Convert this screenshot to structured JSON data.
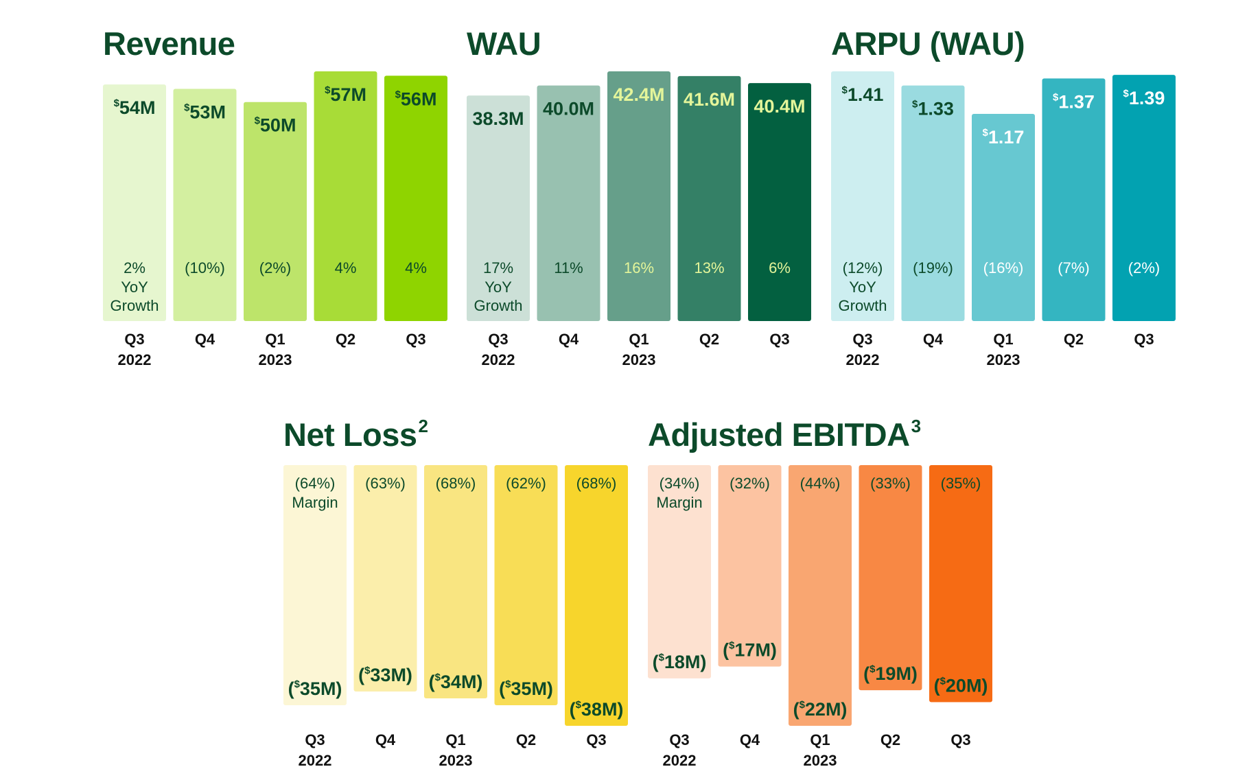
{
  "categories": [
    "Q3",
    "Q4",
    "Q1",
    "Q2",
    "Q3"
  ],
  "years": [
    "2022",
    "",
    "2023",
    "",
    ""
  ],
  "colors": {
    "title": "#0c4a2a",
    "tick": "#111111"
  },
  "panels": {
    "revenue": {
      "title": "Revenue",
      "note": "",
      "colors": [
        "#e6f6cf",
        "#d3efa0",
        "#bde46a",
        "#a8dc37",
        "#8fd400"
      ],
      "text_colors": [
        "#0c4a2a",
        "#0c4a2a",
        "#0c4a2a",
        "#0c4a2a",
        "#0c4a2a"
      ],
      "pct_colors": [
        "#0c4a2a",
        "#0c4a2a",
        "#0c4a2a",
        "#0c4a2a",
        "#0c4a2a"
      ],
      "value_labels": [
        "54M",
        "53M",
        "50M",
        "57M",
        "56M"
      ],
      "currency_prefix": "$",
      "pct_labels": [
        "2%",
        "(10%)",
        "(2%)",
        "4%",
        "4%"
      ],
      "first_suffix": [
        "YoY",
        "Growth"
      ]
    },
    "wau": {
      "title": "WAU",
      "note": "",
      "colors": [
        "#cce0d7",
        "#98c1b0",
        "#669f8a",
        "#348066",
        "#036040"
      ],
      "text_colors": [
        "#0c4a2a",
        "#0c4a2a",
        "#e4f59a",
        "#e4f59a",
        "#e4f59a"
      ],
      "pct_colors": [
        "#0c4a2a",
        "#0c4a2a",
        "#e4f59a",
        "#e4f59a",
        "#e4f59a"
      ],
      "value_labels": [
        "38.3M",
        "40.0M",
        "42.4M",
        "41.6M",
        "40.4M"
      ],
      "currency_prefix": "",
      "pct_labels": [
        "17%",
        "11%",
        "16%",
        "13%",
        "6%"
      ],
      "first_suffix": [
        "YoY",
        "Growth"
      ]
    },
    "arpu": {
      "title": "ARPU (WAU)",
      "note": "",
      "colors": [
        "#cdeef0",
        "#9adbe0",
        "#67c8d1",
        "#34b5c1",
        "#02a2b1"
      ],
      "text_colors": [
        "#0c4a2a",
        "#0c4a2a",
        "#ffffff",
        "#ffffff",
        "#ffffff"
      ],
      "pct_colors": [
        "#0c4a2a",
        "#0c4a2a",
        "#ffffff",
        "#ffffff",
        "#ffffff"
      ],
      "value_labels": [
        "1.41",
        "1.33",
        "1.17",
        "1.37",
        "1.39"
      ],
      "currency_prefix": "$",
      "pct_labels": [
        "(12%)",
        "(19%)",
        "(16%)",
        "(7%)",
        "(2%)"
      ],
      "first_suffix": [
        "YoY",
        "Growth"
      ]
    },
    "net_loss": {
      "title": "Net Loss",
      "note": "2",
      "colors": [
        "#fcf6d5",
        "#fbeeab",
        "#f9e581",
        "#f8dd56",
        "#f7d52c"
      ],
      "text_colors": [
        "#0c4a2a",
        "#0c4a2a",
        "#0c4a2a",
        "#0c4a2a",
        "#0c4a2a"
      ],
      "pct_colors": [
        "#0c4a2a",
        "#0c4a2a",
        "#0c4a2a",
        "#0c4a2a",
        "#0c4a2a"
      ],
      "value_labels": [
        "(35M)",
        "(33M)",
        "(34M)",
        "(35M)",
        "(38M)"
      ],
      "currency_prefix": "$",
      "pct_labels": [
        "(64%)",
        "(63%)",
        "(68%)",
        "(62%)",
        "(68%)"
      ],
      "first_suffix": [
        "Margin"
      ]
    },
    "ebitda": {
      "title": "Adjusted EBITDA",
      "note": "3",
      "colors": [
        "#fde1d0",
        "#fcc3a1",
        "#f9a671",
        "#f88844",
        "#f66b14"
      ],
      "text_colors": [
        "#0c4a2a",
        "#0c4a2a",
        "#0c4a2a",
        "#0c4a2a",
        "#0c4a2a"
      ],
      "pct_colors": [
        "#0c4a2a",
        "#0c4a2a",
        "#0c4a2a",
        "#0c4a2a",
        "#0c4a2a"
      ],
      "value_labels": [
        "(18M)",
        "(17M)",
        "(22M)",
        "(19M)",
        "(20M)"
      ],
      "currency_prefix": "$",
      "pct_labels": [
        "(34%)",
        "(32%)",
        "(44%)",
        "(33%)",
        "(35%)"
      ],
      "first_suffix": [
        "Margin"
      ]
    }
  },
  "chart_data": [
    {
      "type": "bar",
      "title": "Revenue",
      "unit": "$M",
      "categories": [
        "Q3 2022",
        "Q4",
        "Q1 2023",
        "Q2",
        "Q3"
      ],
      "values": [
        54,
        53,
        50,
        57,
        56
      ],
      "growth_pct": [
        2,
        -10,
        -2,
        4,
        4
      ],
      "growth_label": "YoY Growth"
    },
    {
      "type": "bar",
      "title": "WAU",
      "unit": "M",
      "categories": [
        "Q3 2022",
        "Q4",
        "Q1 2023",
        "Q2",
        "Q3"
      ],
      "values": [
        38.3,
        40.0,
        42.4,
        41.6,
        40.4
      ],
      "growth_pct": [
        17,
        11,
        16,
        13,
        6
      ],
      "growth_label": "YoY Growth"
    },
    {
      "type": "bar",
      "title": "ARPU (WAU)",
      "unit": "$",
      "categories": [
        "Q3 2022",
        "Q4",
        "Q1 2023",
        "Q2",
        "Q3"
      ],
      "values": [
        1.41,
        1.33,
        1.17,
        1.37,
        1.39
      ],
      "growth_pct": [
        -12,
        -19,
        -16,
        -7,
        -2
      ],
      "growth_label": "YoY Growth"
    },
    {
      "type": "bar",
      "title": "Net Loss",
      "footnote": "2",
      "unit": "$M",
      "categories": [
        "Q3 2022",
        "Q4",
        "Q1 2023",
        "Q2",
        "Q3"
      ],
      "values": [
        -35,
        -33,
        -34,
        -35,
        -38
      ],
      "margin_pct": [
        -64,
        -63,
        -68,
        -62,
        -68
      ],
      "margin_label": "Margin"
    },
    {
      "type": "bar",
      "title": "Adjusted EBITDA",
      "footnote": "3",
      "unit": "$M",
      "categories": [
        "Q3 2022",
        "Q4",
        "Q1 2023",
        "Q2",
        "Q3"
      ],
      "values": [
        -18,
        -17,
        -22,
        -19,
        -20
      ],
      "margin_pct": [
        -34,
        -32,
        -44,
        -33,
        -35
      ],
      "margin_label": "Margin"
    }
  ]
}
